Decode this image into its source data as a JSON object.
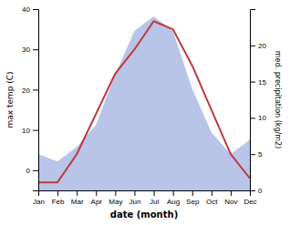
{
  "chart_data": {
    "type": "line",
    "xlabel": "date (month)",
    "ylabel": "max temp (C)",
    "y2label": "med. precipitation (kg/m2)",
    "categories": [
      "Jan",
      "Feb",
      "Mar",
      "Apr",
      "May",
      "Jun",
      "Jul",
      "Aug",
      "Sep",
      "Oct",
      "Nov",
      "Dec"
    ],
    "series": [
      {
        "type": "area",
        "color": "#b8c4e8",
        "axis": "y2",
        "values": [
          5,
          4,
          6,
          9,
          16,
          22,
          24,
          22,
          14,
          8,
          5,
          7
        ]
      },
      {
        "type": "line",
        "color": "#c0393b",
        "values": [
          -3,
          -3,
          4,
          14,
          24,
          30,
          37,
          35,
          26,
          15,
          4,
          -2
        ]
      }
    ],
    "ylim": [
      -5,
      40
    ],
    "yticks": [
      0,
      10,
      20,
      30,
      40
    ],
    "y2lim": [
      0,
      25
    ],
    "y2ticks": [
      0,
      5,
      10,
      15,
      20
    ]
  }
}
